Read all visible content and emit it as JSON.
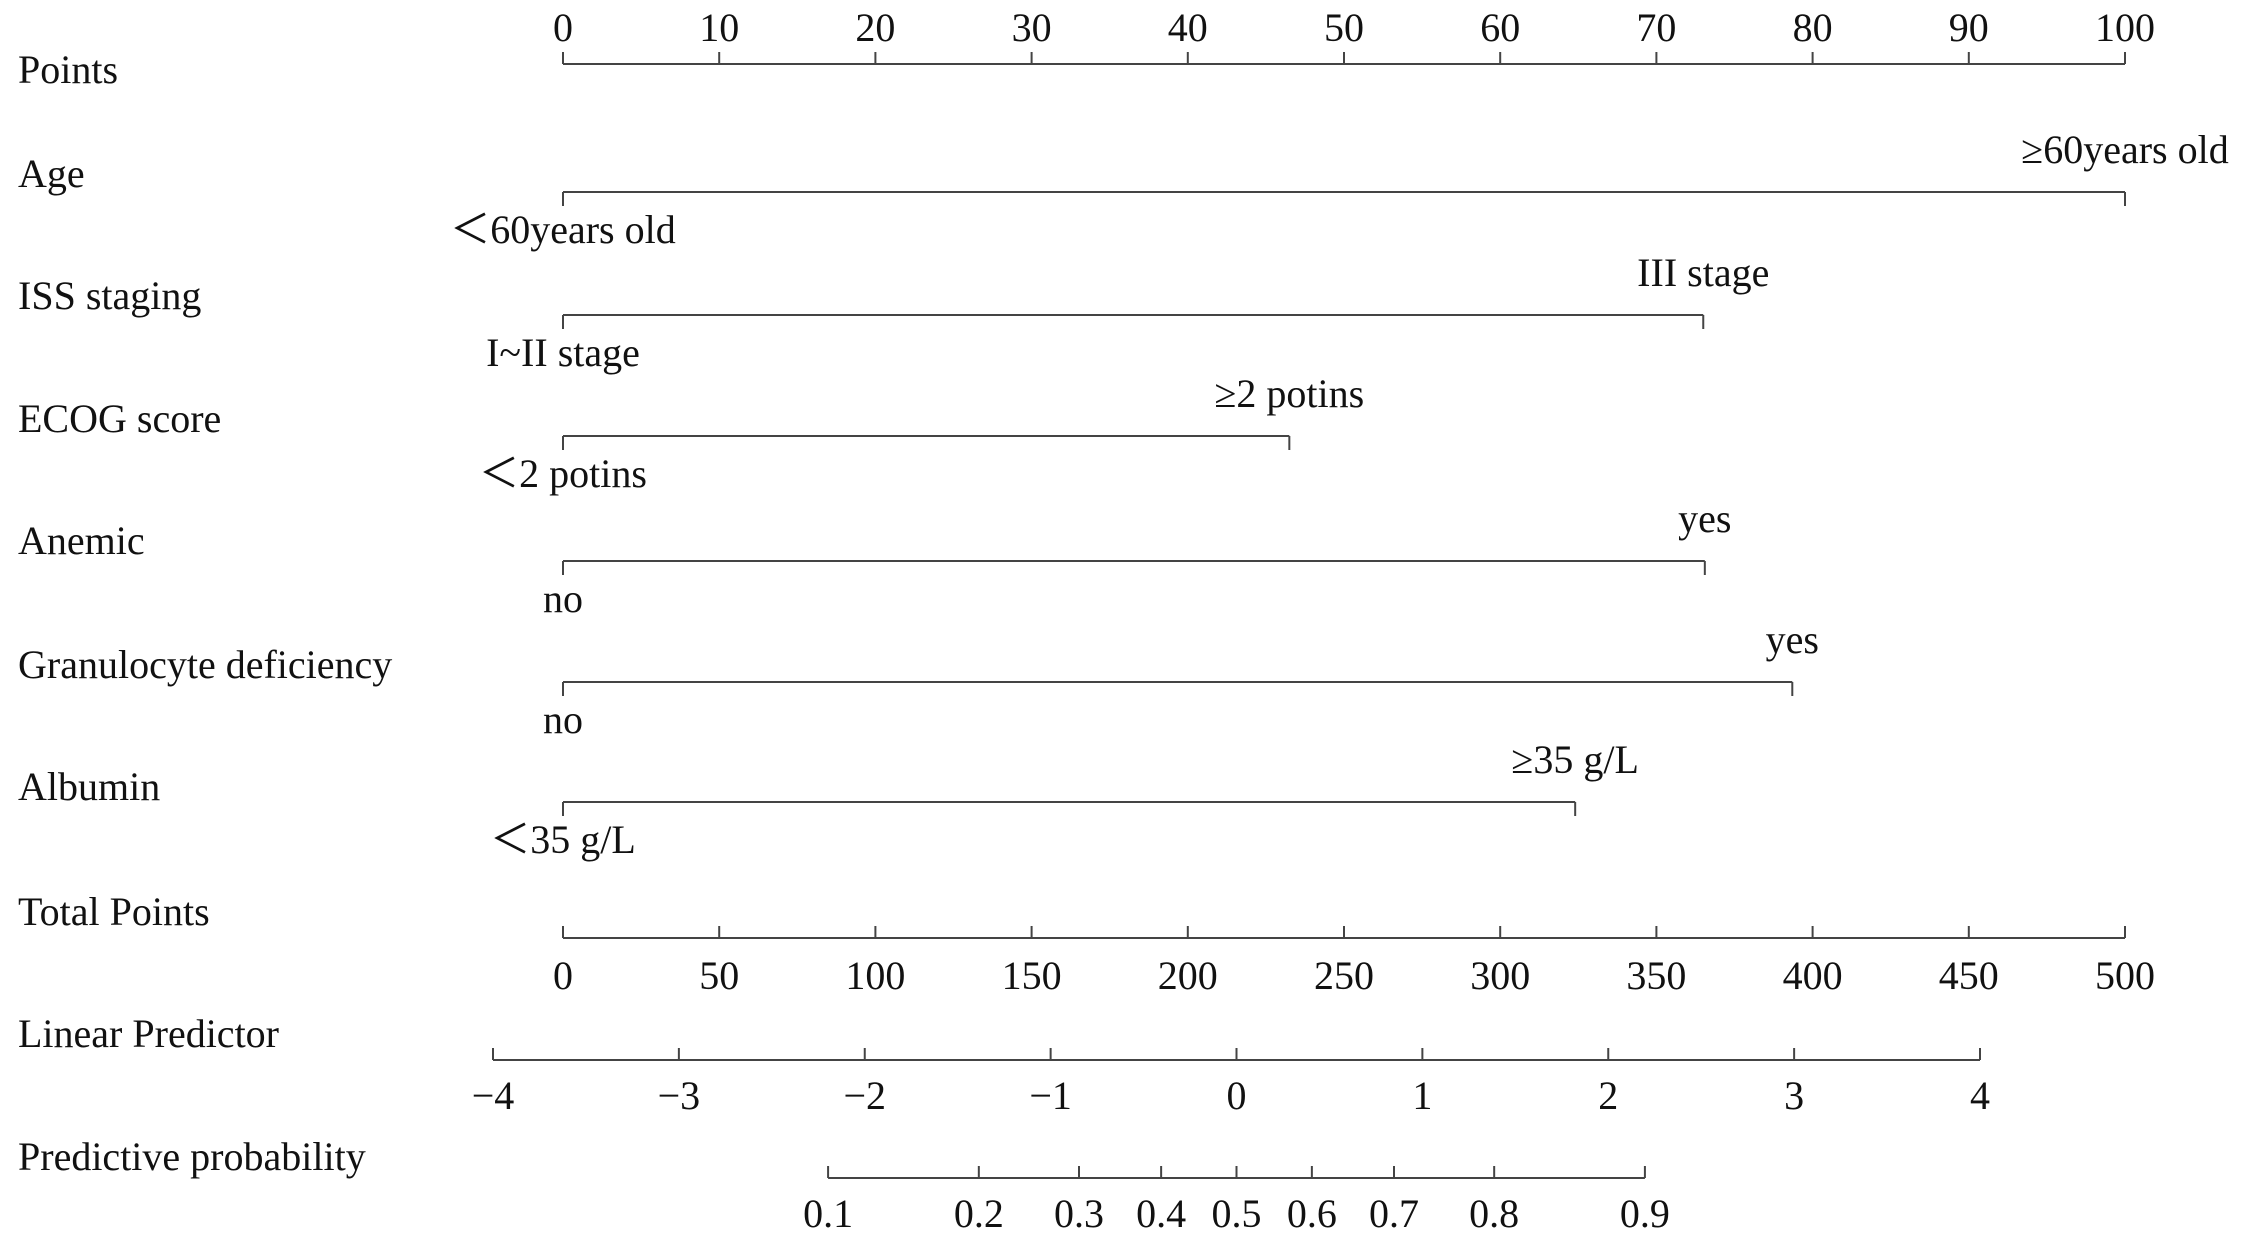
{
  "chart_data": {
    "type": "nomogram",
    "points": {
      "label": "Points",
      "xlim": [
        0,
        100
      ],
      "xticks": [
        0,
        10,
        20,
        30,
        40,
        50,
        60,
        70,
        80,
        90,
        100
      ]
    },
    "variables": [
      {
        "name": "Age",
        "levels": [
          "＜60years old",
          "≥60years old"
        ],
        "points": [
          0,
          100
        ]
      },
      {
        "name": "ISS staging",
        "levels": [
          "I~II stage",
          "III stage"
        ],
        "points": [
          0,
          73
        ]
      },
      {
        "name": "ECOG score",
        "levels": [
          "＜2 potins",
          "≥2 potins"
        ],
        "points": [
          0,
          46.5
        ]
      },
      {
        "name": "Anemic",
        "levels": [
          "no",
          "yes"
        ],
        "points": [
          0,
          73.1
        ]
      },
      {
        "name": "Granulocyte deficiency",
        "levels": [
          "no",
          "yes"
        ],
        "points": [
          0,
          78.7
        ]
      },
      {
        "name": "Albumin",
        "levels": [
          "＜35 g/L",
          "≥35 g/L"
        ],
        "points": [
          0,
          64.8
        ]
      }
    ],
    "total_points": {
      "label": "Total Points",
      "xlim": [
        0,
        500
      ],
      "xticks": [
        0,
        50,
        100,
        150,
        200,
        250,
        300,
        350,
        400,
        450,
        500
      ]
    },
    "linear_predictor": {
      "label": "Linear Predictor",
      "xlim": [
        -4,
        4
      ],
      "xticks": [
        {
          "value": -4,
          "label": "−4"
        },
        {
          "value": -3,
          "label": "−3"
        },
        {
          "value": -2,
          "label": "−2"
        },
        {
          "value": -1,
          "label": "−1"
        },
        0,
        1,
        2,
        3,
        4
      ]
    },
    "probability": {
      "label": "Predictive probability",
      "scale": "logit",
      "xticks": [
        0.1,
        0.2,
        0.3,
        0.4,
        0.5,
        0.6,
        0.7,
        0.8,
        0.9
      ]
    }
  }
}
